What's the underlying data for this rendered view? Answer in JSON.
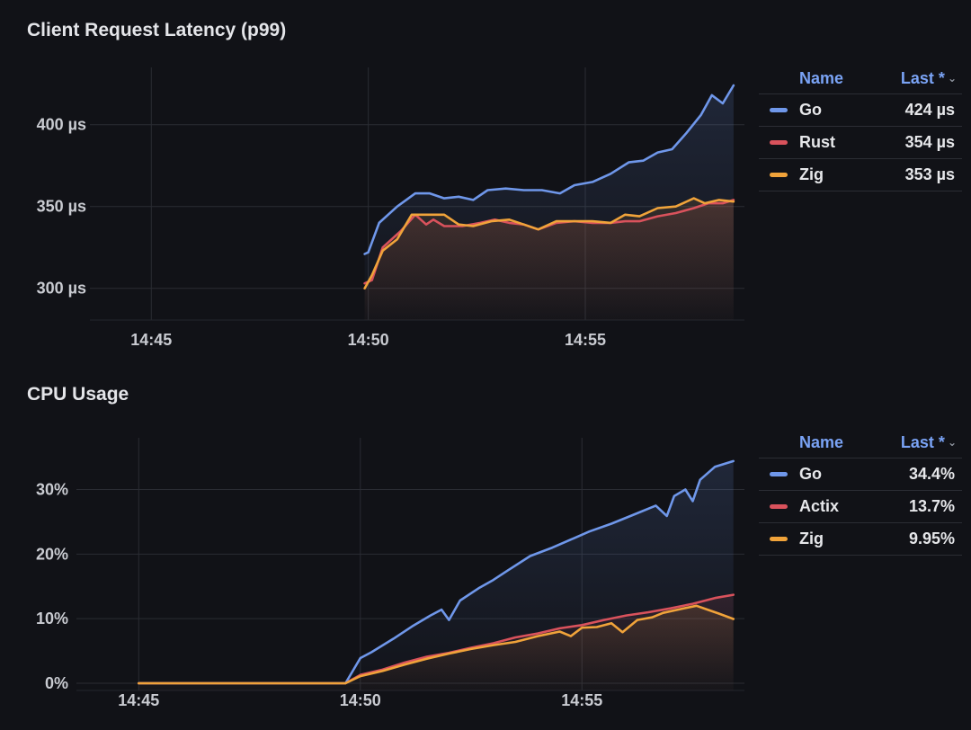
{
  "panels": {
    "latency": {
      "title": "Client Request Latency (p99)",
      "legend": {
        "name_header": "Name",
        "value_header": "Last *",
        "rows": [
          {
            "name": "Go",
            "value": "424 µs",
            "color": "#6f97ea"
          },
          {
            "name": "Rust",
            "value": "354 µs",
            "color": "#d9525c"
          },
          {
            "name": "Zig",
            "value": "353 µs",
            "color": "#f0a33a"
          }
        ]
      }
    },
    "cpu": {
      "title": "CPU Usage",
      "legend": {
        "name_header": "Name",
        "value_header": "Last *",
        "rows": [
          {
            "name": "Go",
            "value": "34.4%",
            "color": "#6f97ea"
          },
          {
            "name": "Actix",
            "value": "13.7%",
            "color": "#d9525c"
          },
          {
            "name": "Zig",
            "value": "9.95%",
            "color": "#f0a33a"
          }
        ]
      }
    }
  },
  "chart_data": [
    {
      "type": "line",
      "title": "Client Request Latency (p99)",
      "x_ticks": [
        "14:45",
        "14:50",
        "14:55"
      ],
      "y_ticks": [
        "300 µs",
        "350 µs",
        "400 µs"
      ],
      "xlim": [
        "14:44",
        "14:58:40"
      ],
      "ylim": [
        285,
        435
      ],
      "grid": true,
      "legend_position": "right",
      "series": [
        {
          "name": "Go",
          "color": "#6f97ea",
          "points": [
            [
              "14:49:55",
              321
            ],
            [
              "14:50:00",
              322
            ],
            [
              "14:50:15",
              340
            ],
            [
              "14:50:40",
              350
            ],
            [
              "14:51:05",
              358
            ],
            [
              "14:51:25",
              358
            ],
            [
              "14:51:45",
              355
            ],
            [
              "14:52:05",
              356
            ],
            [
              "14:52:25",
              354
            ],
            [
              "14:52:45",
              360
            ],
            [
              "14:53:10",
              361
            ],
            [
              "14:53:35",
              360
            ],
            [
              "14:54:00",
              360
            ],
            [
              "14:54:25",
              358
            ],
            [
              "14:54:45",
              363
            ],
            [
              "14:55:10",
              365
            ],
            [
              "14:55:35",
              370
            ],
            [
              "14:56:00",
              377
            ],
            [
              "14:56:20",
              378
            ],
            [
              "14:56:40",
              383
            ],
            [
              "14:57:00",
              385
            ],
            [
              "14:57:20",
              395
            ],
            [
              "14:57:40",
              406
            ],
            [
              "14:57:55",
              418
            ],
            [
              "14:58:10",
              413
            ],
            [
              "14:58:25",
              424
            ]
          ]
        },
        {
          "name": "Rust",
          "color": "#d9525c",
          "points": [
            [
              "14:49:55",
              303
            ],
            [
              "14:50:05",
              305
            ],
            [
              "14:50:20",
              325
            ],
            [
              "14:50:45",
              335
            ],
            [
              "14:51:05",
              345
            ],
            [
              "14:51:20",
              339
            ],
            [
              "14:51:30",
              342
            ],
            [
              "14:51:45",
              338
            ],
            [
              "14:52:10",
              338
            ],
            [
              "14:52:35",
              340
            ],
            [
              "14:52:55",
              342
            ],
            [
              "14:53:15",
              340
            ],
            [
              "14:53:35",
              339
            ],
            [
              "14:53:55",
              336
            ],
            [
              "14:54:20",
              340
            ],
            [
              "14:54:45",
              341
            ],
            [
              "14:55:10",
              340
            ],
            [
              "14:55:35",
              340
            ],
            [
              "14:55:55",
              341
            ],
            [
              "14:56:15",
              341
            ],
            [
              "14:56:40",
              344
            ],
            [
              "14:57:05",
              346
            ],
            [
              "14:57:30",
              349
            ],
            [
              "14:57:50",
              352
            ],
            [
              "14:58:10",
              352
            ],
            [
              "14:58:25",
              354
            ]
          ]
        },
        {
          "name": "Zig",
          "color": "#f0a33a",
          "points": [
            [
              "14:49:55",
              300
            ],
            [
              "14:50:05",
              308
            ],
            [
              "14:50:20",
              323
            ],
            [
              "14:50:40",
              330
            ],
            [
              "14:51:00",
              345
            ],
            [
              "14:51:25",
              345
            ],
            [
              "14:51:45",
              345
            ],
            [
              "14:52:05",
              339
            ],
            [
              "14:52:25",
              338
            ],
            [
              "14:52:50",
              341
            ],
            [
              "14:53:15",
              342
            ],
            [
              "14:53:35",
              339
            ],
            [
              "14:53:55",
              336
            ],
            [
              "14:54:20",
              341
            ],
            [
              "14:54:45",
              341
            ],
            [
              "14:55:10",
              341
            ],
            [
              "14:55:35",
              340
            ],
            [
              "14:55:55",
              345
            ],
            [
              "14:56:15",
              344
            ],
            [
              "14:56:40",
              349
            ],
            [
              "14:57:05",
              350
            ],
            [
              "14:57:30",
              355
            ],
            [
              "14:57:45",
              352
            ],
            [
              "14:58:05",
              354
            ],
            [
              "14:58:25",
              353
            ]
          ]
        }
      ]
    },
    {
      "type": "area",
      "title": "CPU Usage",
      "x_ticks": [
        "14:45",
        "14:50",
        "14:55"
      ],
      "y_ticks": [
        "0%",
        "10%",
        "20%",
        "30%"
      ],
      "xlim": [
        "14:44",
        "14:58:40"
      ],
      "ylim": [
        0,
        38
      ],
      "grid": true,
      "legend_position": "right",
      "series": [
        {
          "name": "Go",
          "color": "#6f97ea",
          "points": [
            [
              "14:45:00",
              0
            ],
            [
              "14:49:40",
              0
            ],
            [
              "14:50:00",
              3.9
            ],
            [
              "14:50:15",
              4.8
            ],
            [
              "14:50:45",
              6.9
            ],
            [
              "14:51:10",
              8.8
            ],
            [
              "14:51:35",
              10.5
            ],
            [
              "14:51:50",
              11.4
            ],
            [
              "14:52:00",
              9.8
            ],
            [
              "14:52:15",
              12.8
            ],
            [
              "14:52:40",
              14.7
            ],
            [
              "14:53:00",
              16.0
            ],
            [
              "14:53:20",
              17.5
            ],
            [
              "14:53:50",
              19.7
            ],
            [
              "14:54:20",
              21.0
            ],
            [
              "14:54:50",
              22.5
            ],
            [
              "14:55:10",
              23.5
            ],
            [
              "14:55:40",
              24.7
            ],
            [
              "14:56:10",
              26.1
            ],
            [
              "14:56:40",
              27.5
            ],
            [
              "14:56:55",
              25.9
            ],
            [
              "14:57:05",
              29.0
            ],
            [
              "14:57:20",
              30.0
            ],
            [
              "14:57:30",
              28.2
            ],
            [
              "14:57:40",
              31.5
            ],
            [
              "14:58:00",
              33.5
            ],
            [
              "14:58:25",
              34.4
            ]
          ]
        },
        {
          "name": "Actix",
          "color": "#d9525c",
          "points": [
            [
              "14:45:00",
              0
            ],
            [
              "14:49:40",
              0
            ],
            [
              "14:50:00",
              1.3
            ],
            [
              "14:50:30",
              2.1
            ],
            [
              "14:51:00",
              3.2
            ],
            [
              "14:51:30",
              4.1
            ],
            [
              "14:52:00",
              4.7
            ],
            [
              "14:52:30",
              5.5
            ],
            [
              "14:53:00",
              6.2
            ],
            [
              "14:53:30",
              7.1
            ],
            [
              "14:54:00",
              7.7
            ],
            [
              "14:54:30",
              8.5
            ],
            [
              "14:55:00",
              9.0
            ],
            [
              "14:55:30",
              9.8
            ],
            [
              "14:56:00",
              10.5
            ],
            [
              "14:56:30",
              11.0
            ],
            [
              "14:57:00",
              11.6
            ],
            [
              "14:57:30",
              12.3
            ],
            [
              "14:58:00",
              13.2
            ],
            [
              "14:58:25",
              13.7
            ]
          ]
        },
        {
          "name": "Zig",
          "color": "#f0a33a",
          "points": [
            [
              "14:45:00",
              0
            ],
            [
              "14:49:40",
              0
            ],
            [
              "14:50:00",
              1.1
            ],
            [
              "14:50:30",
              1.9
            ],
            [
              "14:51:00",
              2.9
            ],
            [
              "14:51:30",
              3.8
            ],
            [
              "14:52:00",
              4.6
            ],
            [
              "14:52:30",
              5.3
            ],
            [
              "14:53:00",
              5.9
            ],
            [
              "14:53:30",
              6.4
            ],
            [
              "14:54:00",
              7.3
            ],
            [
              "14:54:30",
              8.0
            ],
            [
              "14:54:45",
              7.3
            ],
            [
              "14:55:00",
              8.6
            ],
            [
              "14:55:20",
              8.7
            ],
            [
              "14:55:40",
              9.3
            ],
            [
              "14:55:55",
              7.9
            ],
            [
              "14:56:15",
              9.8
            ],
            [
              "14:56:35",
              10.2
            ],
            [
              "14:56:50",
              10.9
            ],
            [
              "14:57:10",
              11.4
            ],
            [
              "14:57:35",
              12.0
            ],
            [
              "14:57:50",
              11.4
            ],
            [
              "14:58:05",
              10.8
            ],
            [
              "14:58:25",
              9.95
            ]
          ]
        }
      ]
    }
  ]
}
